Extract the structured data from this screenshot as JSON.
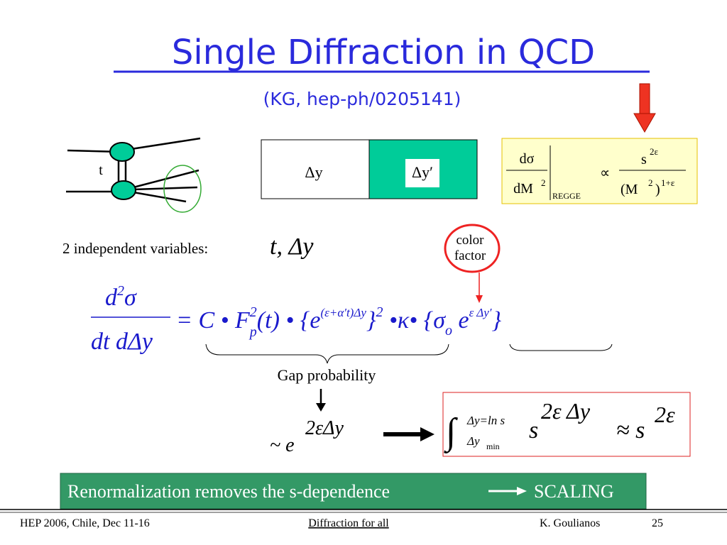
{
  "title": "Single Diffraction in QCD",
  "subtitle": "(KG, hep-ph/0205141)",
  "diagram_label": "t",
  "gap_boxes": [
    "Δy",
    "Δy′"
  ],
  "regge": {
    "num": "dσ",
    "den": "dM",
    "den_exp": "2",
    "subscript": "REGGE",
    "prop": "∝",
    "s": "s",
    "s_exp": "2ε",
    "m_open": "(M",
    "m_exp": "2",
    "m_close": ")",
    "m_close_exp": "1+ε"
  },
  "variables": {
    "label": "2 independent variables:",
    "vars": "t, Δy"
  },
  "color_factor": [
    "color",
    "factor"
  ],
  "main_eq": {
    "num": [
      "d",
      "2",
      "σ"
    ],
    "den": "dt dΔy",
    "rhs": [
      "= C • F",
      "2",
      "p",
      "(t) • {",
      "e",
      "(ε+α′t)Δy",
      "}",
      "2",
      " •κ• {σ",
      "o",
      " e",
      "ε Δy′",
      "}"
    ]
  },
  "gap_label": "Gap probability",
  "gap_expr": [
    "~ e",
    "2εΔy"
  ],
  "integral": {
    "sign": "∫",
    "upper": "Δy=ln s",
    "lower": "Δy",
    "lower_sub": "min",
    "s": "s",
    "s_exp": "2ε Δy",
    "approx": "≈ s",
    "approx_exp": "2ε"
  },
  "banner": [
    "Renormalization removes the s-dependence",
    "SCALING"
  ],
  "footer": {
    "left": "HEP 2006, Chile, Dec 11-16",
    "center": "Diffraction for all",
    "right": "K. Goulianos",
    "page": "25"
  }
}
